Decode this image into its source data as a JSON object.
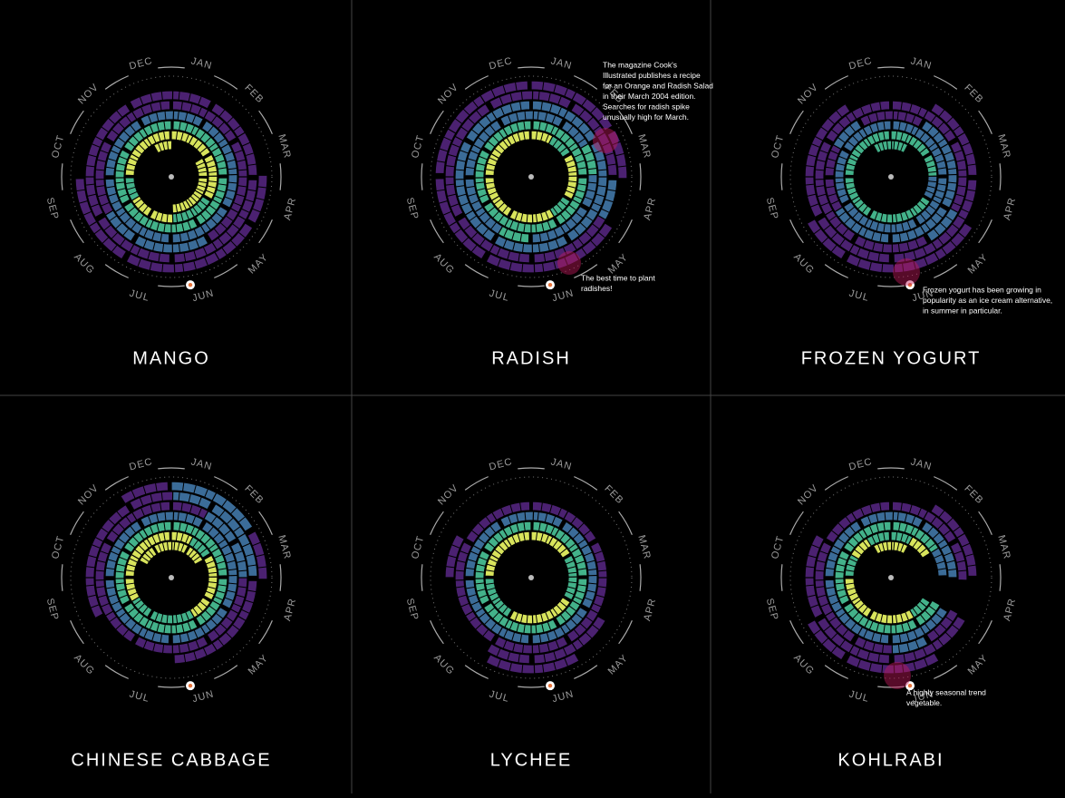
{
  "months": [
    "JAN",
    "FEB",
    "MAR",
    "APR",
    "MAY",
    "JUN",
    "JUL",
    "AUG",
    "SEP",
    "OCT",
    "NOV",
    "DEC"
  ],
  "level_colors": [
    "#4b2171",
    "#3b6c98",
    "#43b28a",
    "#d8e45c"
  ],
  "panels": [
    {
      "title": "MANGO",
      "rings": [
        [
          0,
          0,
          4,
          4,
          4,
          4,
          0,
          0,
          0,
          0,
          0,
          4
        ],
        [
          4,
          4,
          4,
          4,
          3,
          3,
          4,
          4,
          3,
          4,
          4,
          4
        ],
        [
          3,
          3,
          3,
          3,
          3,
          3,
          3,
          3,
          3,
          3,
          3,
          3
        ],
        [
          2,
          2,
          2,
          2,
          2,
          2,
          2,
          2,
          2,
          2,
          2,
          2
        ],
        [
          1,
          1,
          1,
          1,
          1,
          2,
          2,
          2,
          1,
          1,
          1,
          1
        ],
        [
          1,
          1,
          1,
          1,
          1,
          1,
          1,
          1,
          1,
          1,
          1,
          1
        ],
        [
          0,
          0,
          0,
          1,
          1,
          1,
          1,
          1,
          1,
          0,
          0,
          0
        ]
      ]
    },
    {
      "title": "RADISH",
      "rings": [
        [
          0,
          0,
          0,
          0,
          0,
          0,
          0,
          0,
          0,
          0,
          0,
          0
        ],
        [
          4,
          3,
          4,
          4,
          3,
          4,
          4,
          4,
          4,
          4,
          4,
          4
        ],
        [
          3,
          3,
          3,
          3,
          3,
          3,
          3,
          3,
          3,
          3,
          3,
          3
        ],
        [
          2,
          2,
          3,
          2,
          2,
          2,
          3,
          2,
          2,
          2,
          2,
          2
        ],
        [
          2,
          2,
          2,
          2,
          2,
          2,
          2,
          2,
          2,
          2,
          2,
          2
        ],
        [
          1,
          1,
          1,
          2,
          1,
          1,
          1,
          1,
          1,
          1,
          1,
          1
        ],
        [
          1,
          1,
          1,
          0,
          1,
          1,
          1,
          1,
          1,
          1,
          1,
          1
        ]
      ],
      "annotations": [
        {
          "lines": [
            "The magazine Cook's",
            "Illustrated publishes a recipe",
            "for an Orange and Radish Salad",
            "in their March 2004 edition.",
            "Searches for radish spike",
            "unusually high for March."
          ]
        },
        {
          "lines": [
            "The best time to plant",
            "radishes!"
          ]
        }
      ]
    },
    {
      "title": "FROZEN YOGURT",
      "rings": [
        [
          3,
          0,
          0,
          0,
          0,
          0,
          0,
          0,
          0,
          0,
          0,
          3
        ],
        [
          3,
          3,
          3,
          2,
          3,
          3,
          3,
          3,
          3,
          3,
          3,
          3
        ],
        [
          2,
          2,
          2,
          2,
          2,
          2,
          2,
          2,
          2,
          2,
          2,
          2
        ],
        [
          1,
          2,
          2,
          2,
          2,
          2,
          2,
          2,
          1,
          1,
          2,
          1
        ],
        [
          1,
          1,
          1,
          1,
          2,
          1,
          1,
          1,
          1,
          1,
          1,
          1
        ],
        [
          0,
          1,
          1,
          1,
          1,
          1,
          1,
          1,
          1,
          1,
          1,
          0
        ],
        [
          0,
          0,
          0,
          0,
          1,
          1,
          1,
          1,
          0,
          0,
          0,
          0
        ]
      ],
      "annotations": [
        {
          "lines": [
            "Frozen yogurt has been growing in",
            "popularity as an ice cream alternative,",
            "in summer in particular."
          ]
        }
      ]
    },
    {
      "title": "CHINESE CABBAGE",
      "rings": [
        [
          4,
          4,
          0,
          0,
          0,
          0,
          0,
          0,
          0,
          0,
          4,
          4
        ],
        [
          4,
          3,
          4,
          4,
          4,
          3,
          3,
          3,
          4,
          4,
          4,
          4
        ],
        [
          3,
          3,
          3,
          3,
          3,
          3,
          3,
          3,
          3,
          3,
          3,
          3
        ],
        [
          2,
          2,
          2,
          2,
          2,
          2,
          2,
          2,
          2,
          2,
          2,
          2
        ],
        [
          1,
          2,
          2,
          1,
          1,
          1,
          1,
          1,
          1,
          1,
          1,
          1
        ],
        [
          2,
          2,
          2,
          1,
          1,
          1,
          0,
          0,
          1,
          1,
          1,
          1
        ],
        [
          2,
          2,
          1,
          0,
          0,
          0,
          0,
          0,
          0,
          0,
          0,
          1
        ]
      ]
    },
    {
      "title": "LYCHEE",
      "rings": [
        [
          0,
          0,
          0,
          0,
          0,
          0,
          0,
          0,
          0,
          0,
          0,
          0
        ],
        [
          4,
          4,
          3,
          3,
          4,
          4,
          4,
          3,
          3,
          4,
          4,
          4
        ],
        [
          3,
          3,
          3,
          3,
          3,
          3,
          3,
          3,
          3,
          3,
          3,
          3
        ],
        [
          2,
          2,
          2,
          2,
          2,
          2,
          2,
          2,
          2,
          2,
          2,
          2
        ],
        [
          1,
          1,
          1,
          1,
          1,
          1,
          1,
          1,
          1,
          1,
          1,
          1
        ],
        [
          0,
          0,
          0,
          0,
          1,
          1,
          1,
          0,
          0,
          1,
          0,
          0
        ],
        [
          0,
          0,
          0,
          0,
          0,
          1,
          1,
          0,
          0,
          0,
          0,
          0
        ]
      ]
    },
    {
      "title": "KOHLRABI",
      "rings": [
        [
          4,
          0,
          0,
          0,
          0,
          0,
          0,
          0,
          0,
          0,
          0,
          4
        ],
        [
          3,
          4,
          0,
          0,
          3,
          4,
          4,
          4,
          4,
          3,
          4,
          3
        ],
        [
          3,
          3,
          2,
          0,
          3,
          3,
          3,
          3,
          3,
          3,
          3,
          3
        ],
        [
          2,
          2,
          2,
          0,
          2,
          2,
          2,
          2,
          2,
          2,
          2,
          2
        ],
        [
          1,
          1,
          1,
          0,
          1,
          2,
          1,
          1,
          1,
          1,
          1,
          1
        ],
        [
          0,
          1,
          1,
          0,
          1,
          1,
          1,
          1,
          1,
          1,
          0,
          0
        ],
        [
          0,
          0,
          0,
          0,
          0,
          1,
          1,
          1,
          0,
          0,
          0,
          0
        ]
      ],
      "annotations": [
        {
          "lines": [
            "A highly seasonal trend",
            "vegetable."
          ]
        }
      ]
    }
  ]
}
